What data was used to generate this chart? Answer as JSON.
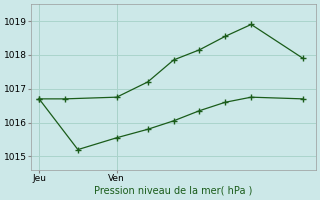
{
  "xlabel_bottom": "Pression niveau de la mer( hPa )",
  "bg_color": "#cce8e8",
  "grid_color": "#aad4cc",
  "line_color": "#1a5c1a",
  "ylim": [
    1014.6,
    1019.5
  ],
  "yticks": [
    1015,
    1016,
    1017,
    1018,
    1019
  ],
  "xlim": [
    0,
    11
  ],
  "jeu_x": 0.3,
  "ven_x": 3.3,
  "s1_x": [
    0.3,
    1.3,
    3.3,
    4.5,
    5.5,
    6.5,
    7.5,
    8.5,
    10.5
  ],
  "s1_y": [
    1016.7,
    1016.7,
    1016.75,
    1017.2,
    1017.85,
    1018.15,
    1018.55,
    1018.9,
    1017.9
  ],
  "s2_x": [
    0.3,
    1.8,
    3.3,
    4.5,
    5.5,
    6.5,
    7.5,
    8.5,
    10.5
  ],
  "s2_y": [
    1016.7,
    1015.2,
    1015.55,
    1015.8,
    1016.05,
    1016.35,
    1016.6,
    1016.75,
    1016.7
  ]
}
